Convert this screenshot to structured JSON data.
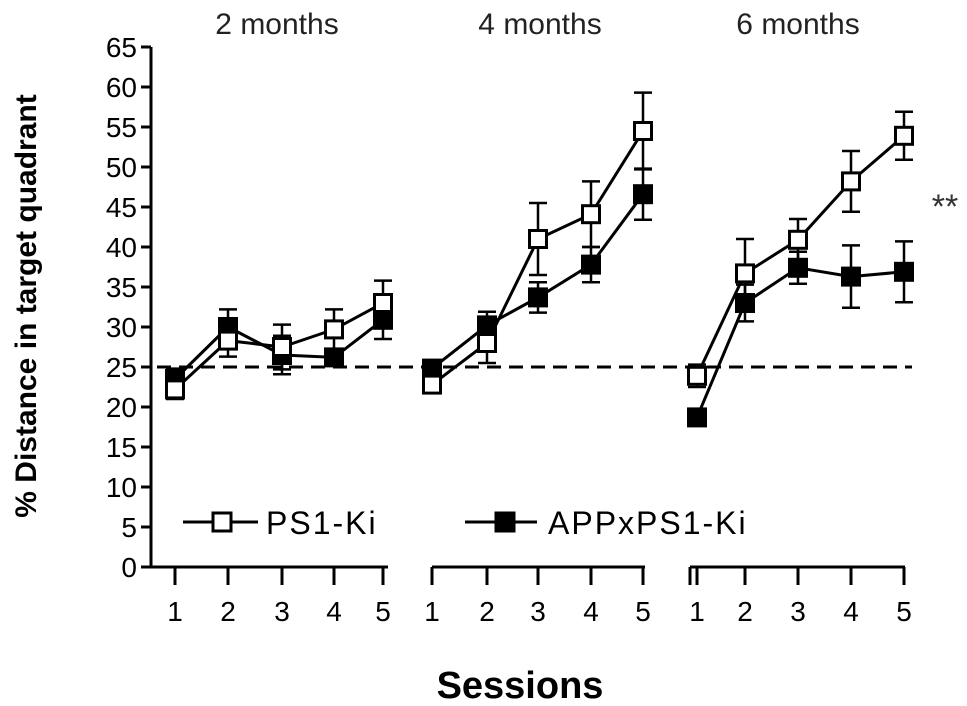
{
  "chart_data": {
    "type": "line",
    "xlabel": "Sessions",
    "ylabel": "% Distance in target quadrant",
    "ylim": [
      0,
      65
    ],
    "yticks": [
      0,
      5,
      10,
      15,
      20,
      25,
      30,
      35,
      40,
      45,
      50,
      55,
      60,
      65
    ],
    "x": [
      1,
      2,
      3,
      4,
      5
    ],
    "reference_line": {
      "y": 25,
      "style": "dashed"
    },
    "legend": [
      {
        "name": "PS1-Ki",
        "marker": "open-square"
      },
      {
        "name": "APPxPS1-Ki",
        "marker": "filled-square"
      }
    ],
    "panels": [
      {
        "title": "2 months",
        "series": [
          {
            "name": "PS1-Ki",
            "values": [
              22.2,
              28.3,
              27.5,
              29.7,
              33.0
            ],
            "errors": [
              1.2,
              2.0,
              2.8,
              2.5,
              2.8
            ]
          },
          {
            "name": "APPxPS1-Ki",
            "values": [
              23.5,
              30.0,
              26.5,
              26.2,
              30.9
            ],
            "errors": [
              1.3,
              2.2,
              2.4,
              1.0,
              2.4
            ]
          }
        ]
      },
      {
        "title": "4 months",
        "series": [
          {
            "name": "PS1-Ki",
            "values": [
              22.8,
              28.0,
              41.0,
              44.1,
              54.5
            ],
            "errors": [
              0.8,
              2.5,
              4.5,
              4.1,
              4.8
            ]
          },
          {
            "name": "APPxPS1-Ki",
            "values": [
              24.8,
              30.2,
              33.7,
              37.8,
              46.6
            ],
            "errors": [
              1.0,
              1.7,
              1.9,
              2.2,
              3.2
            ]
          }
        ]
      },
      {
        "title": "6 months",
        "series": [
          {
            "name": "PS1-Ki",
            "values": [
              23.9,
              36.7,
              40.9,
              48.2,
              53.9
            ],
            "errors": [
              1.4,
              4.3,
              2.6,
              3.8,
              3.0
            ]
          },
          {
            "name": "APPxPS1-Ki",
            "values": [
              18.7,
              33.0,
              37.4,
              36.3,
              36.9
            ],
            "errors": [
              0.8,
              2.3,
              2.0,
              3.9,
              3.8
            ]
          }
        ]
      }
    ],
    "annotations": [
      "**"
    ]
  }
}
